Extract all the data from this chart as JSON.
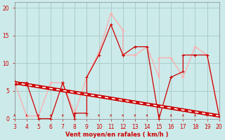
{
  "xlabel": "Vent moyen/en rafales ( km/h )",
  "xlim": [
    3,
    20
  ],
  "ylim": [
    0,
    21
  ],
  "xticks": [
    3,
    4,
    5,
    6,
    7,
    8,
    9,
    10,
    11,
    12,
    13,
    14,
    15,
    16,
    17,
    18,
    19,
    20
  ],
  "yticks": [
    0,
    5,
    10,
    15,
    20
  ],
  "bg_color": "#cceaea",
  "grid_color": "#aacccc",
  "mean_wind_x": [
    3,
    4,
    5,
    6,
    7,
    7,
    8,
    8,
    9,
    9,
    10,
    11,
    12,
    12,
    13,
    13,
    14,
    15,
    16,
    16,
    17,
    17,
    18,
    18,
    19,
    20
  ],
  "mean_wind_y": [
    6.5,
    6.5,
    0,
    0,
    6.5,
    6.5,
    0,
    1,
    1,
    7.5,
    11.5,
    17,
    11.5,
    11.5,
    13,
    13,
    13,
    0,
    7.5,
    7.5,
    8.5,
    11.5,
    11.5,
    11.5,
    11.5,
    0.5
  ],
  "gust_wind_x": [
    3,
    4,
    5,
    6,
    7,
    8,
    9,
    10,
    11,
    12,
    12,
    13,
    14,
    15,
    15,
    16,
    17,
    18,
    19,
    20
  ],
  "gust_wind_y": [
    6.5,
    0.5,
    0.5,
    6.5,
    6.5,
    1,
    7.5,
    12,
    19,
    16,
    11.5,
    11.5,
    13,
    7.5,
    11,
    11,
    7.5,
    13,
    11.5,
    0.5
  ],
  "trend_x": [
    3,
    20
  ],
  "trend_y": [
    6.5,
    0.5
  ],
  "mean_color": "#cc0000",
  "gust_color": "#ffaaaa",
  "trend_color": "#cc0000",
  "wind_arrows_x": [
    3,
    4,
    5,
    6,
    7,
    8,
    9,
    10,
    11,
    12,
    13,
    14,
    15,
    16,
    17,
    18,
    19,
    20
  ]
}
